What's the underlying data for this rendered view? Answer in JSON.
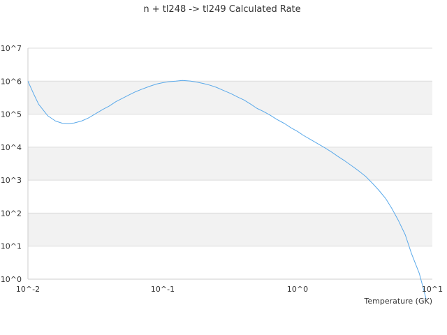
{
  "chart_data": {
    "type": "line",
    "title": "n + tl248 -> tl249 Calculated Rate",
    "xlabel": "Temperature (GK)",
    "ylabel": "",
    "x_scale": "log",
    "y_scale": "log",
    "xlim": [
      0.01,
      10
    ],
    "ylim": [
      1,
      10000000
    ],
    "x_ticks": [
      {
        "value": 0.01,
        "label": "10^-2"
      },
      {
        "value": 0.1,
        "label": "10^-1"
      },
      {
        "value": 1,
        "label": "10^0"
      },
      {
        "value": 10,
        "label": "10^1"
      }
    ],
    "y_ticks": [
      {
        "value": 1,
        "label": "10^0"
      },
      {
        "value": 10,
        "label": "10^1"
      },
      {
        "value": 100,
        "label": "10^2"
      },
      {
        "value": 1000,
        "label": "10^3"
      },
      {
        "value": 10000,
        "label": "10^4"
      },
      {
        "value": 100000,
        "label": "10^5"
      },
      {
        "value": 1000000,
        "label": "10^6"
      },
      {
        "value": 10000000,
        "label": "10^7"
      }
    ],
    "grid": true,
    "alternating_bands": true,
    "legend": "none",
    "colors": {
      "line": "#5aa9ea",
      "band": "#f2f2f2",
      "grid": "#dcdcdc",
      "axis": "#cccccc",
      "text": "#333333"
    },
    "series": [
      {
        "x": [
          0.01,
          0.011,
          0.012,
          0.014,
          0.016,
          0.018,
          0.02,
          0.022,
          0.025,
          0.028,
          0.032,
          0.036,
          0.04,
          0.045,
          0.05,
          0.056,
          0.063,
          0.07,
          0.08,
          0.09,
          0.1,
          0.11,
          0.125,
          0.14,
          0.16,
          0.18,
          0.2,
          0.225,
          0.25,
          0.28,
          0.32,
          0.36,
          0.4,
          0.45,
          0.5,
          0.56,
          0.63,
          0.7,
          0.8,
          0.9,
          1.0,
          1.1,
          1.25,
          1.4,
          1.6,
          1.8,
          2.0,
          2.25,
          2.5,
          2.8,
          3.2,
          3.6,
          4.0,
          4.5,
          5.0,
          5.6,
          6.3,
          7.0,
          8.0,
          9.0
        ],
        "y": [
          1000000,
          420000,
          200000,
          90000,
          62000,
          53000,
          52000,
          54000,
          62000,
          76000,
          105000,
          140000,
          175000,
          240000,
          300000,
          380000,
          480000,
          570000,
          700000,
          820000,
          900000,
          960000,
          1000000,
          1050000,
          1010000,
          930000,
          850000,
          750000,
          650000,
          530000,
          420000,
          330000,
          270000,
          200000,
          150000,
          120000,
          92000,
          70000,
          52000,
          38000,
          30000,
          23000,
          17000,
          13000,
          9500,
          7000,
          5200,
          3800,
          2800,
          2000,
          1300,
          800,
          500,
          280,
          140,
          60,
          22,
          6,
          1.5,
          0.25
        ]
      }
    ]
  }
}
